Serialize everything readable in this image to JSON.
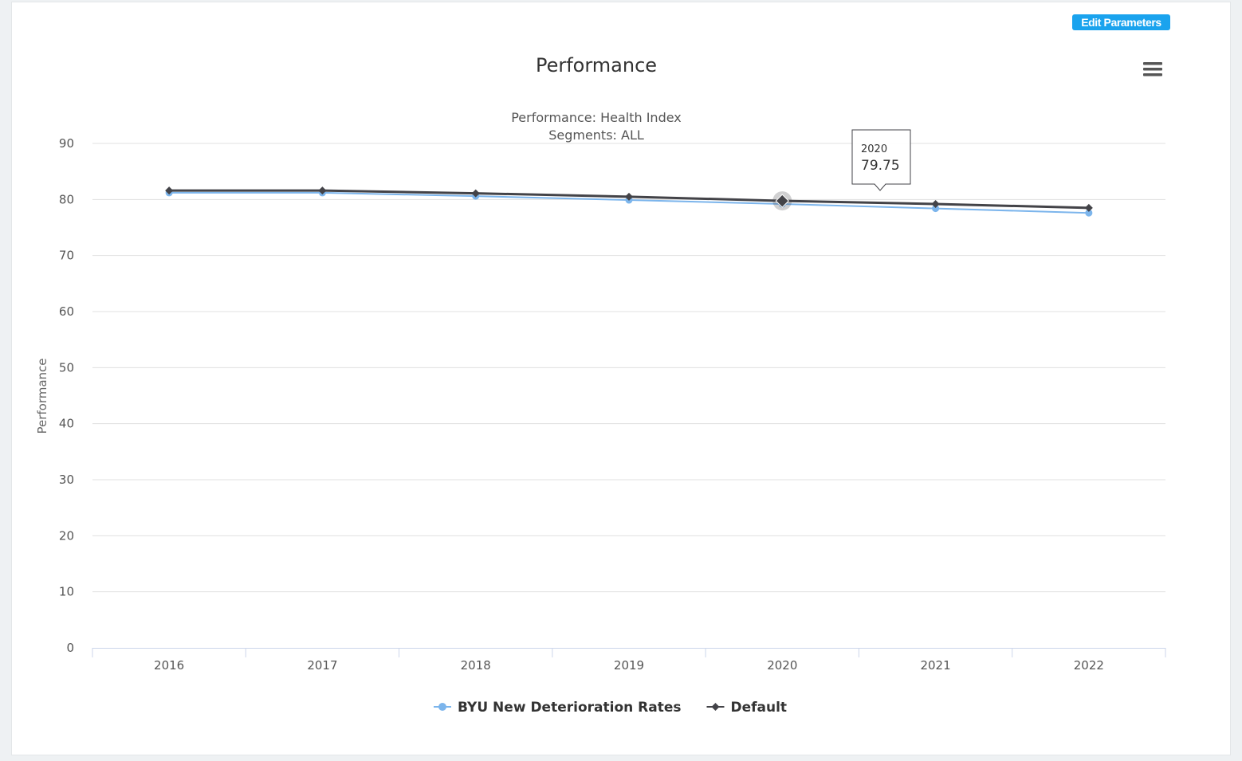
{
  "toolbar": {
    "edit_label": "Edit Parameters",
    "menu_icon": "hamburger-menu-icon"
  },
  "chart_data": {
    "type": "line",
    "title": "Performance",
    "subtitle": [
      "Performance: Health Index",
      "Segments: ALL"
    ],
    "xlabel": "",
    "ylabel": "Performance",
    "categories": [
      "2016",
      "2017",
      "2018",
      "2019",
      "2020",
      "2021",
      "2022"
    ],
    "ylim": [
      0,
      90
    ],
    "yticks": [
      0,
      10,
      20,
      30,
      40,
      50,
      60,
      70,
      80,
      90
    ],
    "grid": true,
    "legend_position": "bottom-center",
    "series": [
      {
        "name": "BYU New Deterioration Rates",
        "color": "#7cb5ec",
        "marker": "circle",
        "values": [
          81.2,
          81.2,
          80.6,
          79.9,
          79.2,
          78.4,
          77.6
        ]
      },
      {
        "name": "Default",
        "color": "#434348",
        "marker": "diamond",
        "values": [
          81.6,
          81.6,
          81.1,
          80.5,
          79.75,
          79.2,
          78.5
        ]
      }
    ],
    "tooltip": {
      "x": "2020",
      "y": "79.75",
      "series_index": 1,
      "point_index": 4
    }
  }
}
